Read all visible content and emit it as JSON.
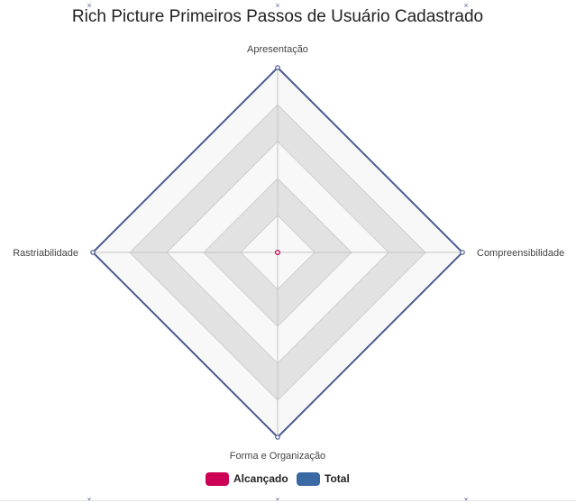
{
  "chart_data": {
    "type": "radar",
    "title": "Rich Picture Primeiros Passos de Usuário Cadastrado",
    "axes": [
      "Apresentação",
      "Compreensibilidade",
      "Forma e Organização",
      "Rastriabilidade"
    ],
    "series": [
      {
        "name": "Alcançado",
        "values": [
          0,
          0,
          0,
          0
        ],
        "color": "#cc0055"
      },
      {
        "name": "Total",
        "values": [
          5,
          5,
          5,
          5
        ],
        "color": "#3a69a3"
      }
    ],
    "rlim": [
      0,
      5
    ],
    "ring_colors": [
      "#f8f8f8",
      "#e2e2e2"
    ],
    "legend_position": "bottom",
    "outline_color": "#4a5a90"
  },
  "decor": {
    "mark": "×"
  }
}
